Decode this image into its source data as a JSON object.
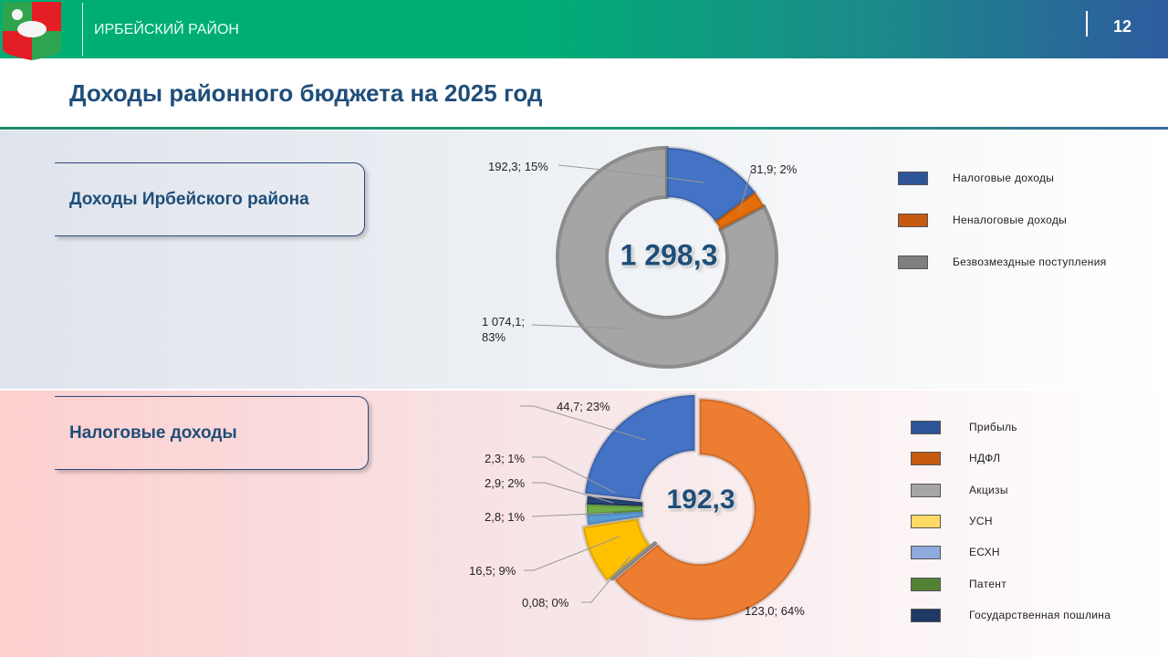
{
  "header": {
    "region": "ИРБЕЙСКИЙ РАЙОН",
    "page_number": "12"
  },
  "title": "Доходы районного бюджета на 2025 год",
  "section1": {
    "label": "Доходы Ирбейского района"
  },
  "section2": {
    "label": "Налоговые доходы"
  },
  "chart_data": [
    {
      "type": "pie",
      "subtype": "donut",
      "total_label": "1 298,3",
      "categories": [
        "Налоговые доходы",
        "Неналоговые доходы",
        "Безвозмездные поступления"
      ],
      "values": [
        192.3,
        31.9,
        1074.1
      ],
      "data_labels": [
        "192,3; 15%",
        "31,9; 2%",
        "1 074,1; 83%"
      ],
      "colors": [
        "#4472c4",
        "#e46c0a",
        "#a5a5a5"
      ],
      "legend_colors": [
        "#2e5597",
        "#c55a11",
        "#7f7f7f"
      ],
      "legend": "right"
    },
    {
      "type": "pie",
      "subtype": "donut",
      "total_label": "192,3",
      "categories": [
        "НДФЛ",
        "Акцизы",
        "УСН",
        "ЕСХН",
        "Патент",
        "Государственная пошлина",
        "Прибыль"
      ],
      "values": [
        123.0,
        0.08,
        16.5,
        2.8,
        2.9,
        2.3,
        44.7
      ],
      "data_labels": [
        "123,0; 64%",
        "0,08; 0%",
        "16,5; 9%",
        "2,8; 1%",
        "2,9; 2%",
        "2,3; 1%",
        "44,7; 23%"
      ],
      "colors": [
        "#ed7d31",
        "#a5a5a5",
        "#ffc000",
        "#5b9bd5",
        "#70ad47",
        "#264478",
        "#4472c4"
      ],
      "legend_order": [
        "Прибыль",
        "НДФЛ",
        "Акцизы",
        "УСН",
        "ЕСХН",
        "Патент",
        "Государственная пошлина"
      ],
      "legend_colors": [
        "#2e5597",
        "#c55a11",
        "#a5a5a5",
        "#ffd966",
        "#8faadc",
        "#548235",
        "#1f3864"
      ],
      "legend": "right"
    }
  ]
}
